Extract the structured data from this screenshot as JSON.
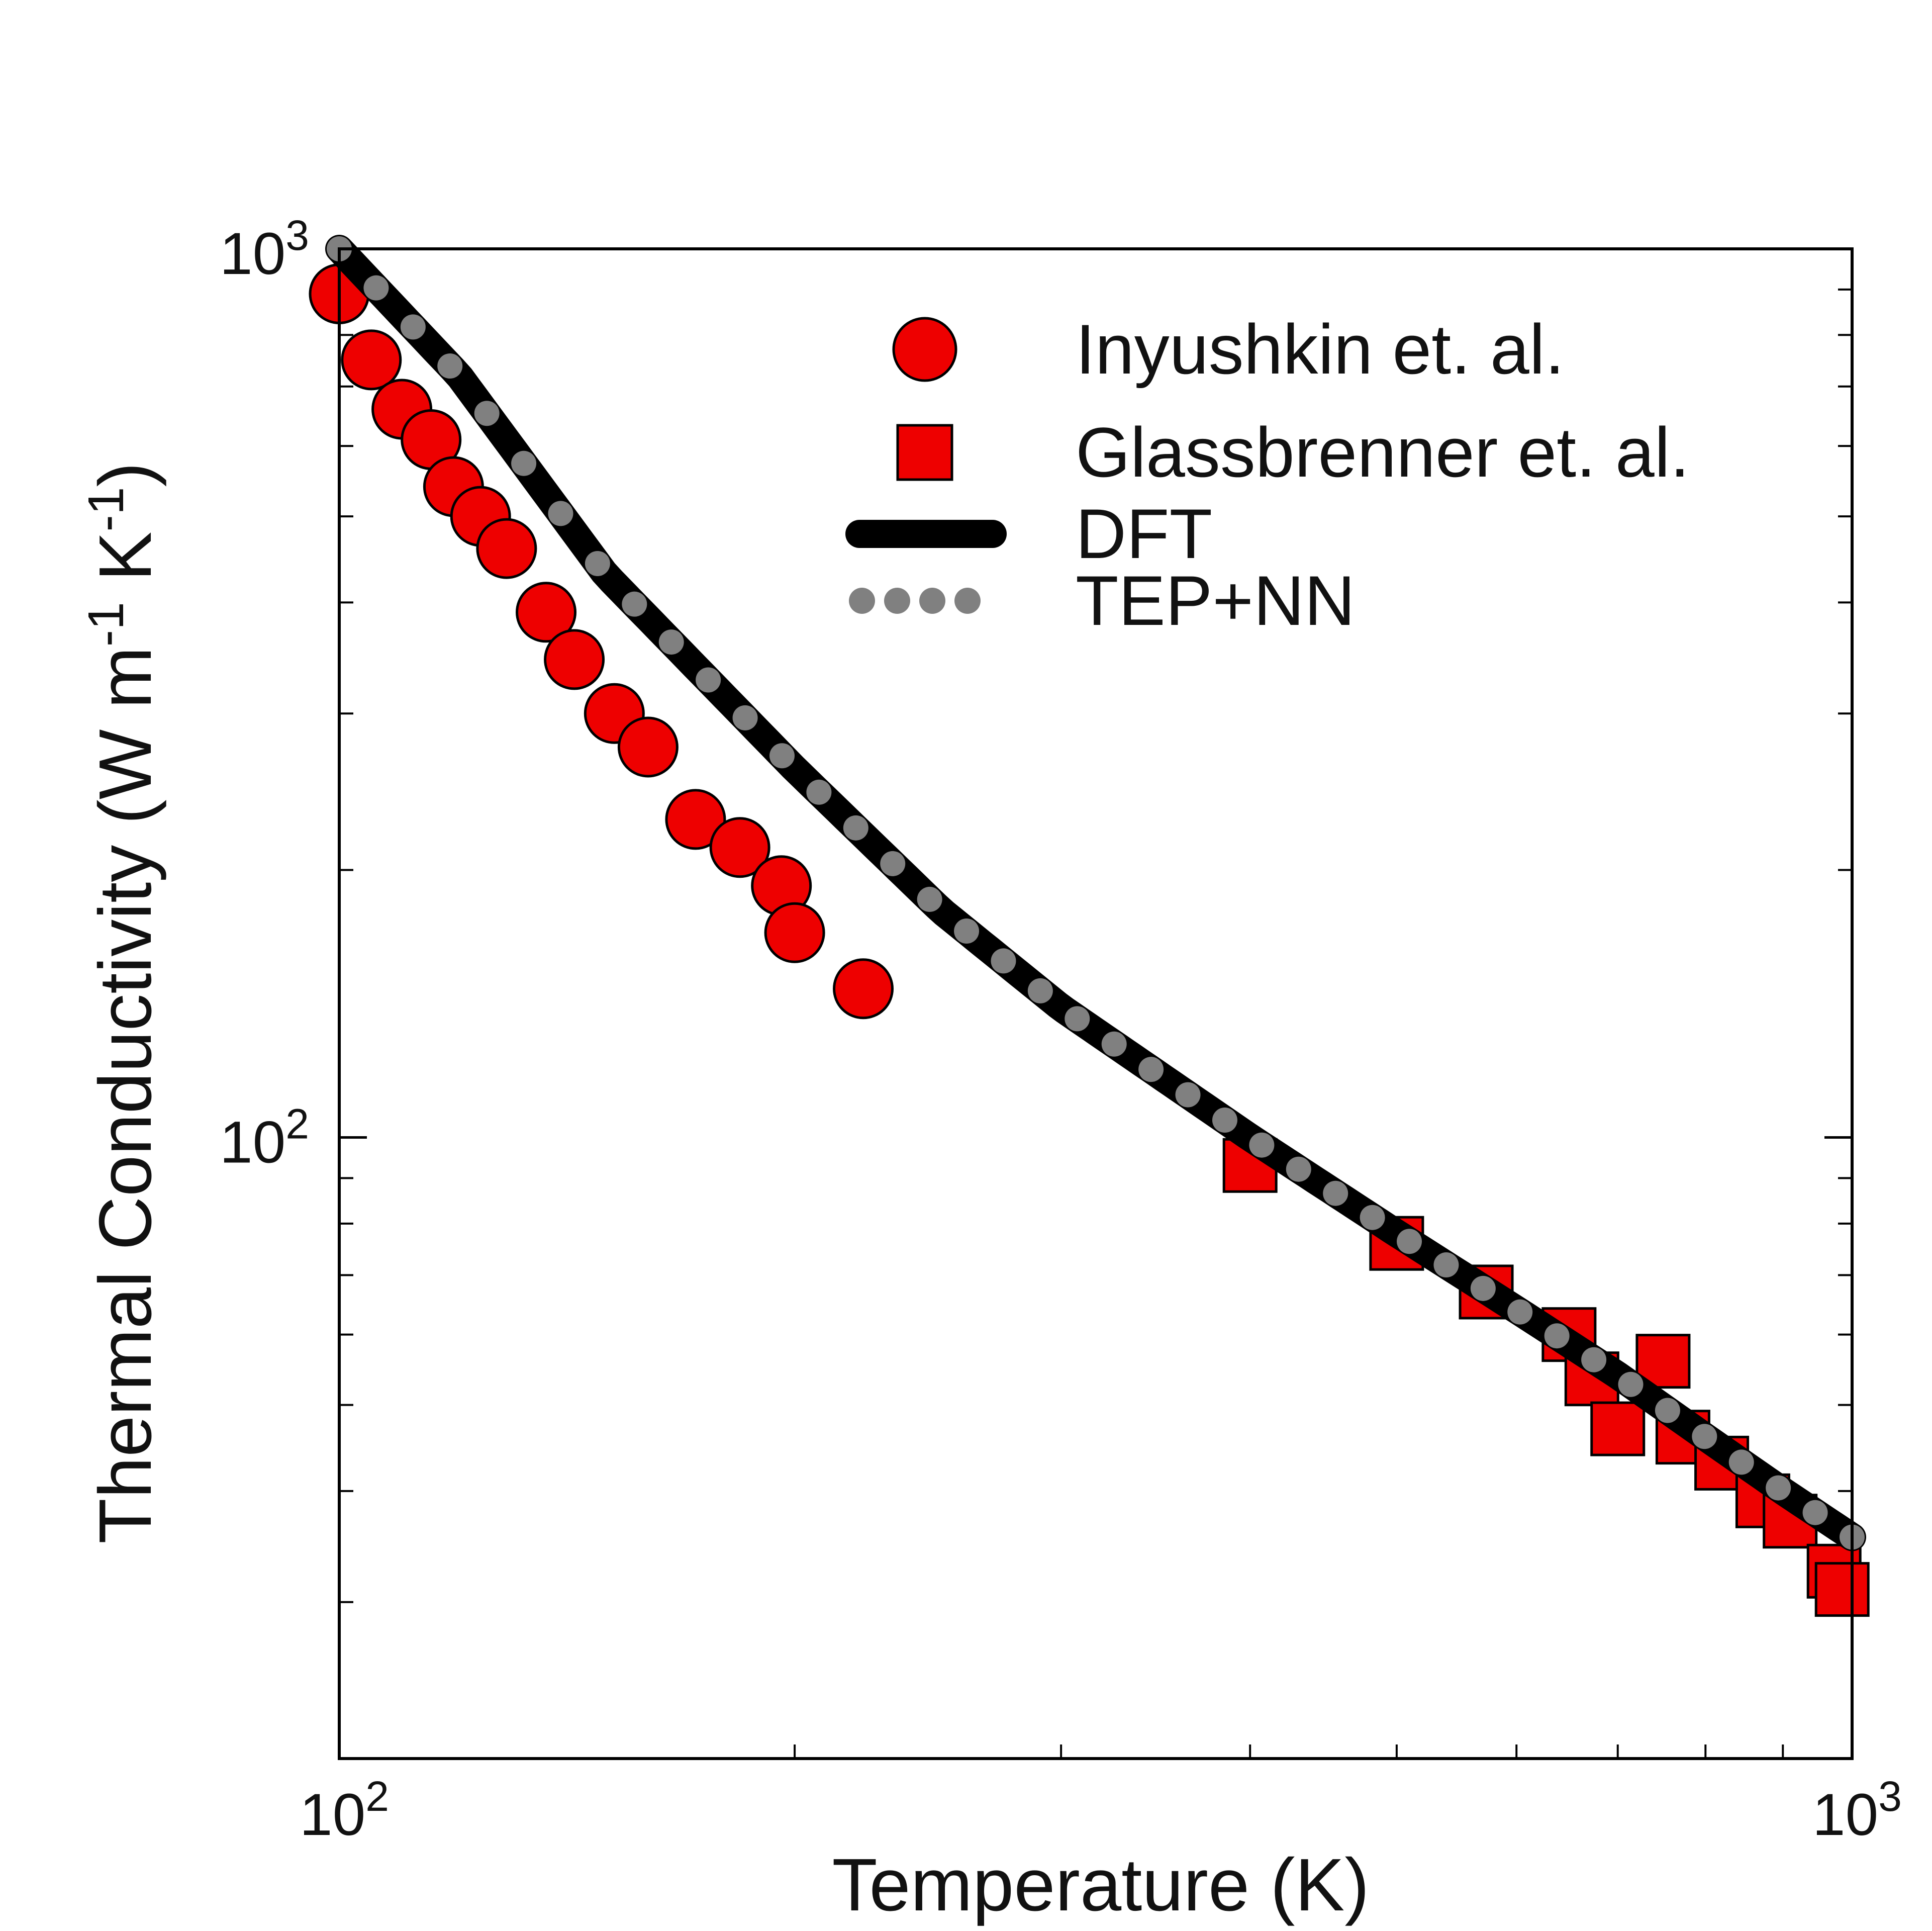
{
  "chart_data": {
    "type": "scatter",
    "title": "",
    "xlabel": "Temperature (K)",
    "ylabel": "Thermal Conductivity (W m-1 K-1)",
    "ylabel_parts": {
      "prefix": "Thermal Conductivity (W m",
      "exp1": "-1",
      "mid": " K",
      "exp2": "-1",
      "suffix": ")"
    },
    "x_scale": "log",
    "y_scale": "log",
    "xlim": [
      100,
      1000
    ],
    "ylim": [
      20,
      1000
    ],
    "x_tick_labels": [
      {
        "base": "10",
        "exp": "2",
        "value": 100
      },
      {
        "base": "10",
        "exp": "3",
        "value": 1000
      }
    ],
    "y_tick_labels": [
      {
        "base": "10",
        "exp": "2",
        "value": 100
      },
      {
        "base": "10",
        "exp": "3",
        "value": 1000
      }
    ],
    "grid": false,
    "legend_position": "top-right",
    "series": [
      {
        "name": "Inyushkin et. al.",
        "kind": "marker",
        "marker": "circle",
        "color": "#ee0000",
        "points": [
          {
            "x": 100,
            "y": 890
          },
          {
            "x": 105,
            "y": 750
          },
          {
            "x": 110,
            "y": 660
          },
          {
            "x": 115,
            "y": 610
          },
          {
            "x": 119,
            "y": 540
          },
          {
            "x": 124,
            "y": 500
          },
          {
            "x": 129,
            "y": 460
          },
          {
            "x": 137,
            "y": 390
          },
          {
            "x": 143,
            "y": 345
          },
          {
            "x": 152,
            "y": 300
          },
          {
            "x": 160,
            "y": 275
          },
          {
            "x": 172,
            "y": 228
          },
          {
            "x": 184,
            "y": 212
          },
          {
            "x": 196,
            "y": 192
          },
          {
            "x": 200,
            "y": 170
          },
          {
            "x": 222,
            "y": 147
          }
        ]
      },
      {
        "name": "Glassbrenner et. al.",
        "kind": "marker",
        "marker": "square",
        "color": "#ee0000",
        "points": [
          {
            "x": 400,
            "y": 93
          },
          {
            "x": 500,
            "y": 76
          },
          {
            "x": 573,
            "y": 67
          },
          {
            "x": 650,
            "y": 60
          },
          {
            "x": 673,
            "y": 53.5
          },
          {
            "x": 700,
            "y": 47
          },
          {
            "x": 750,
            "y": 56
          },
          {
            "x": 773,
            "y": 46
          },
          {
            "x": 820,
            "y": 43
          },
          {
            "x": 873,
            "y": 39
          },
          {
            "x": 910,
            "y": 37
          },
          {
            "x": 973,
            "y": 32.5
          },
          {
            "x": 985,
            "y": 31
          }
        ]
      },
      {
        "name": "DFT",
        "kind": "line",
        "color": "#000000",
        "points": [
          {
            "x": 100,
            "y": 1000
          },
          {
            "x": 120,
            "y": 720
          },
          {
            "x": 150,
            "y": 430
          },
          {
            "x": 200,
            "y": 260
          },
          {
            "x": 250,
            "y": 180
          },
          {
            "x": 300,
            "y": 140
          },
          {
            "x": 400,
            "y": 100
          },
          {
            "x": 500,
            "y": 78
          },
          {
            "x": 600,
            "y": 64
          },
          {
            "x": 700,
            "y": 54
          },
          {
            "x": 800,
            "y": 46
          },
          {
            "x": 900,
            "y": 40
          },
          {
            "x": 1000,
            "y": 35.5
          }
        ]
      },
      {
        "name": "TEP+NN",
        "kind": "dotted",
        "color": "#808080",
        "points": [
          {
            "x": 100,
            "y": 1000
          },
          {
            "x": 120,
            "y": 720
          },
          {
            "x": 150,
            "y": 430
          },
          {
            "x": 200,
            "y": 260
          },
          {
            "x": 250,
            "y": 180
          },
          {
            "x": 300,
            "y": 140
          },
          {
            "x": 400,
            "y": 100
          },
          {
            "x": 500,
            "y": 78
          },
          {
            "x": 600,
            "y": 64
          },
          {
            "x": 700,
            "y": 54
          },
          {
            "x": 800,
            "y": 46
          },
          {
            "x": 900,
            "y": 40
          },
          {
            "x": 1000,
            "y": 35.5
          }
        ]
      }
    ]
  }
}
